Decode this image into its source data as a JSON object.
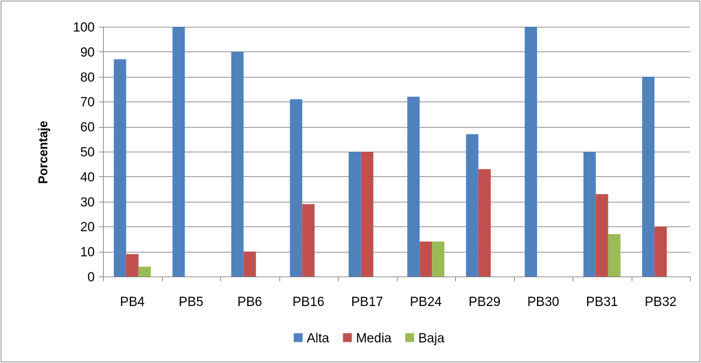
{
  "chart_data": {
    "type": "bar",
    "title": "",
    "xlabel": "",
    "ylabel": "Porcentaje",
    "ylim": [
      0,
      100
    ],
    "yticks": [
      0,
      10,
      20,
      30,
      40,
      50,
      60,
      70,
      80,
      90,
      100
    ],
    "grid": true,
    "legend_position": "bottom",
    "categories": [
      "PB4",
      "PB5",
      "PB6",
      "PB16",
      "PB17",
      "PB24",
      "PB29",
      "PB30",
      "PB31",
      "PB32"
    ],
    "series": [
      {
        "name": "Alta",
        "color": "#4F81BD",
        "values": [
          87,
          100,
          90,
          71,
          50,
          72,
          57,
          100,
          50,
          80
        ]
      },
      {
        "name": "Media",
        "color": "#C0504D",
        "values": [
          9,
          0,
          10,
          29,
          50,
          14,
          43,
          0,
          33,
          20
        ]
      },
      {
        "name": "Baja",
        "color": "#9BBB59",
        "values": [
          4,
          0,
          0,
          0,
          0,
          14,
          0,
          0,
          17,
          0
        ]
      }
    ]
  }
}
